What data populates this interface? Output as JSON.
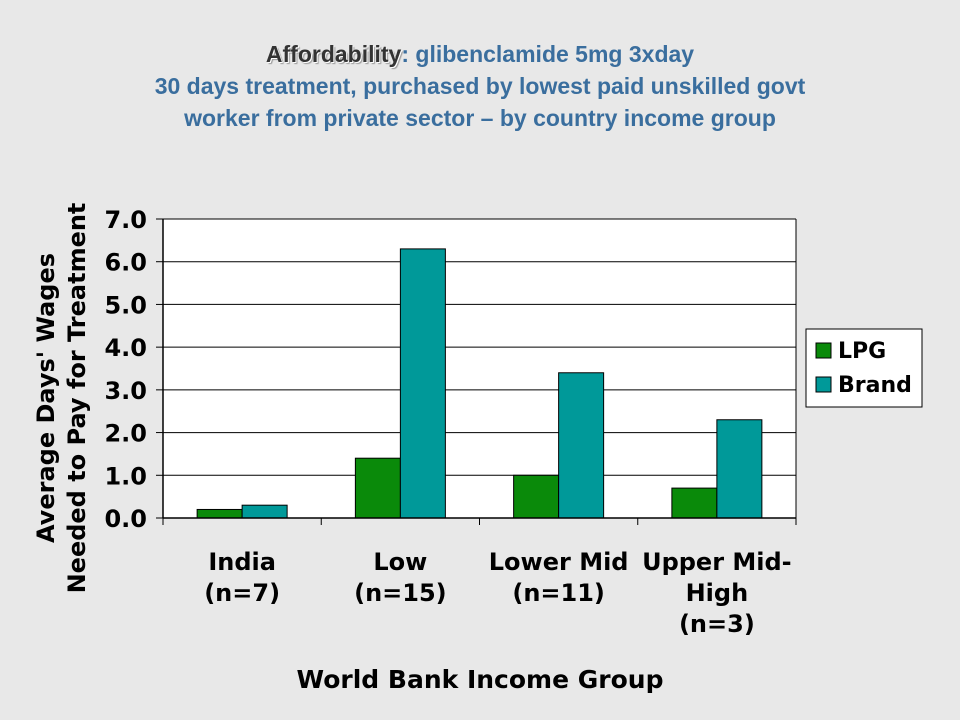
{
  "title": {
    "lead": "Affordability",
    "rest": ": glibenclamide 5mg 3xday",
    "line2": "30 days treatment, purchased by lowest paid unskilled govt",
    "line3": "worker from private sector – by country income group"
  },
  "chart_data": {
    "type": "bar",
    "categories": [
      [
        "India",
        "(n=7)"
      ],
      [
        "Low",
        "(n=15)"
      ],
      [
        "Lower Mid",
        "(n=11)"
      ],
      [
        "Upper Mid-",
        "High",
        "(n=3)"
      ]
    ],
    "series": [
      {
        "name": "LPG",
        "color": "#0a8a0a",
        "values": [
          0.2,
          1.4,
          1.0,
          0.7
        ]
      },
      {
        "name": "Brand",
        "color": "#009999",
        "values": [
          0.3,
          6.3,
          3.4,
          2.3
        ]
      }
    ],
    "yticks": [
      "0.0",
      "1.0",
      "2.0",
      "3.0",
      "4.0",
      "5.0",
      "6.0",
      "7.0"
    ],
    "ylim": [
      0,
      7
    ],
    "ylabel": [
      "Average Days' Wages",
      "Needed to Pay for Treatment"
    ],
    "xlabel": "World Bank Income Group",
    "legend_position": "right",
    "grid": true
  }
}
